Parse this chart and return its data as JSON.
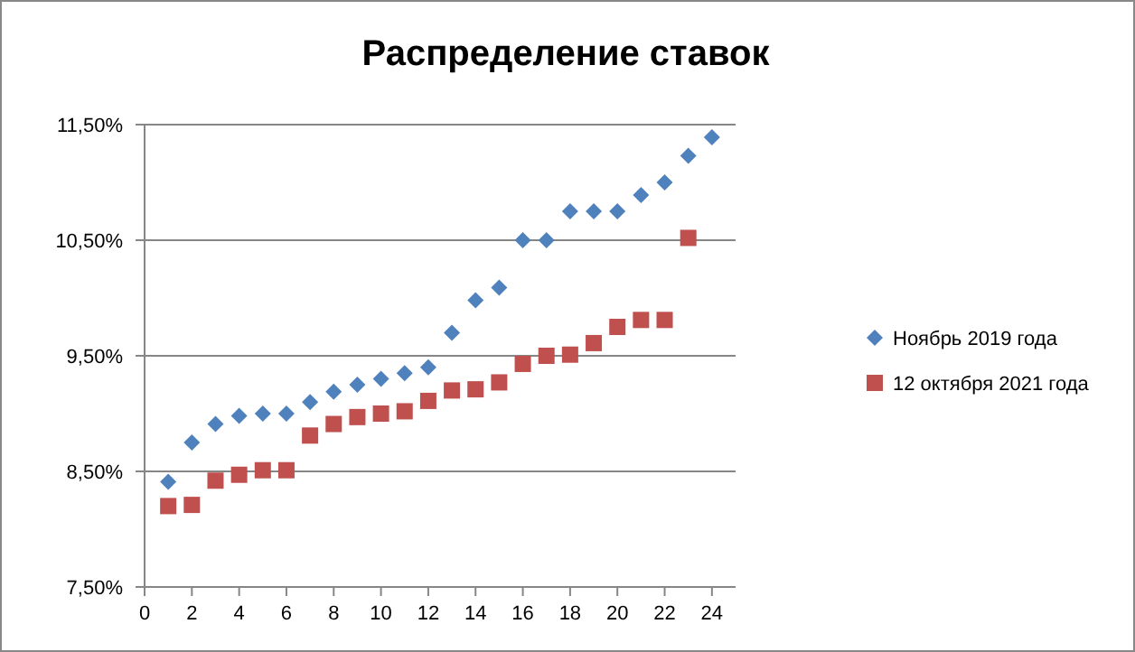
{
  "chart_data": {
    "type": "scatter",
    "title": "Распределение ставок",
    "x": [
      1,
      2,
      3,
      4,
      5,
      6,
      7,
      8,
      9,
      10,
      11,
      12,
      13,
      14,
      15,
      16,
      17,
      18,
      19,
      20,
      21,
      22,
      23,
      24
    ],
    "series": [
      {
        "name": "Ноябрь 2019 года",
        "color": "#4f81bd",
        "marker": "diamond",
        "values": [
          8.41,
          8.75,
          8.91,
          8.98,
          9.0,
          9.0,
          9.1,
          9.19,
          9.25,
          9.3,
          9.35,
          9.4,
          9.7,
          9.98,
          10.09,
          10.5,
          10.5,
          10.75,
          10.75,
          10.75,
          10.89,
          11.0,
          11.23,
          11.39
        ]
      },
      {
        "name": "12 октября 2021 года",
        "color": "#c0504d",
        "marker": "square",
        "values": [
          8.2,
          8.21,
          8.42,
          8.47,
          8.51,
          8.51,
          8.81,
          8.91,
          8.97,
          9.0,
          9.02,
          9.11,
          9.2,
          9.21,
          9.27,
          9.43,
          9.5,
          9.51,
          9.61,
          9.75,
          9.81,
          9.81,
          10.52,
          null
        ]
      }
    ],
    "xlim": [
      0,
      25
    ],
    "xticks": [
      0,
      2,
      4,
      6,
      8,
      10,
      12,
      14,
      16,
      18,
      20,
      22,
      24
    ],
    "ylim": [
      7.5,
      11.5
    ],
    "yticks": [
      {
        "value": 7.5,
        "label": "7,50%"
      },
      {
        "value": 8.5,
        "label": "8,50%"
      },
      {
        "value": 9.5,
        "label": "9,50%"
      },
      {
        "value": 10.5,
        "label": "10,50%"
      },
      {
        "value": 11.5,
        "label": "11,50%"
      }
    ],
    "grid": "y",
    "legend": "right"
  }
}
